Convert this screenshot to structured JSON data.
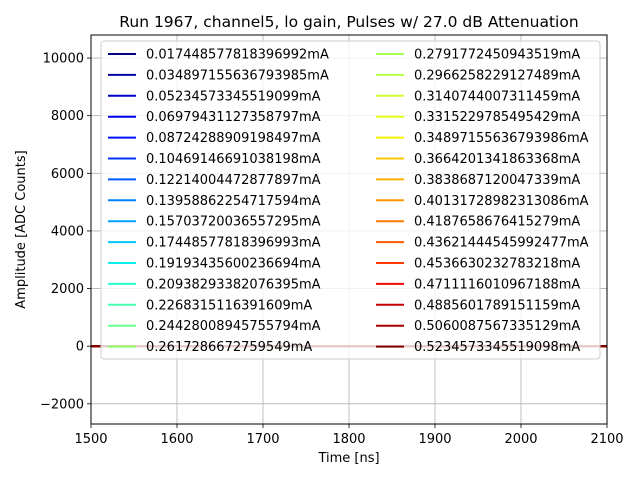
{
  "chart_data": {
    "type": "line",
    "title": "Run 1967, channel5, lo gain, Pulses w/ 27.0 dB Attenuation",
    "xlabel": "Time [ns]",
    "ylabel": "Amplitude [ADC Counts]",
    "xlim": [
      1500,
      2100
    ],
    "ylim": [
      -2700,
      10800
    ],
    "xticks": [
      1500,
      1600,
      1700,
      1800,
      1900,
      2000,
      2100
    ],
    "yticks": [
      -2000,
      0,
      2000,
      4000,
      6000,
      8000,
      10000
    ],
    "xtick_labels": [
      "1500",
      "1600",
      "1700",
      "1800",
      "1900",
      "2000",
      "2100"
    ],
    "ytick_labels": [
      "−2000",
      "0",
      "2000",
      "4000",
      "6000",
      "8000",
      "10000"
    ],
    "grid": true,
    "legend_position": "top",
    "legend_columns": 2,
    "series": [
      {
        "name": "0.017448577818396992mA",
        "color": "#00007f",
        "x": [
          1500,
          2100
        ],
        "y": [
          0,
          0
        ]
      },
      {
        "name": "0.034897155636793985mA",
        "color": "#00009f",
        "x": [
          1500,
          2100
        ],
        "y": [
          0,
          0
        ]
      },
      {
        "name": "0.05234573345519099mA",
        "color": "#0000c8",
        "x": [
          1500,
          2100
        ],
        "y": [
          0,
          0
        ]
      },
      {
        "name": "0.06979431127358797mA",
        "color": "#0000ed",
        "x": [
          1500,
          2100
        ],
        "y": [
          0,
          0
        ]
      },
      {
        "name": "0.08724288909198497mA",
        "color": "#0010ff",
        "x": [
          1500,
          2100
        ],
        "y": [
          0,
          0
        ]
      },
      {
        "name": "0.10469146691038198mA",
        "color": "#0034ff",
        "x": [
          1500,
          2100
        ],
        "y": [
          0,
          0
        ]
      },
      {
        "name": "0.12214004472877897mA",
        "color": "#0058ff",
        "x": [
          1500,
          2100
        ],
        "y": [
          0,
          0
        ]
      },
      {
        "name": "0.13958862254717594mA",
        "color": "#0080ff",
        "x": [
          1500,
          2100
        ],
        "y": [
          0,
          0
        ]
      },
      {
        "name": "0.15703720036557295mA",
        "color": "#00a4ff",
        "x": [
          1500,
          2100
        ],
        "y": [
          0,
          0
        ]
      },
      {
        "name": "0.17448577818396993mA",
        "color": "#00c8ff",
        "x": [
          1500,
          2100
        ],
        "y": [
          0,
          0
        ]
      },
      {
        "name": "0.19193435600236694mA",
        "color": "#0ceff2",
        "x": [
          1500,
          2100
        ],
        "y": [
          0,
          0
        ]
      },
      {
        "name": "0.20938293382076395mA",
        "color": "#29ffce",
        "x": [
          1500,
          2100
        ],
        "y": [
          0,
          0
        ]
      },
      {
        "name": "0.2268315116391609mA",
        "color": "#45ffb1",
        "x": [
          1500,
          2100
        ],
        "y": [
          0,
          0
        ]
      },
      {
        "name": "0.24428008945755794mA",
        "color": "#69ff8d",
        "x": [
          1500,
          2100
        ],
        "y": [
          0,
          0
        ]
      },
      {
        "name": "0.2617286672759549mA",
        "color": "#8dff69",
        "x": [
          1500,
          2100
        ],
        "y": [
          0,
          0
        ]
      },
      {
        "name": "0.2791772450943519mA",
        "color": "#a4ff53",
        "x": [
          1500,
          2100
        ],
        "y": [
          0,
          0
        ]
      },
      {
        "name": "0.2966258229127489mA",
        "color": "#b7ff40",
        "x": [
          1500,
          2100
        ],
        "y": [
          0,
          0
        ]
      },
      {
        "name": "0.3140744007311459mA",
        "color": "#ceff29",
        "x": [
          1500,
          2100
        ],
        "y": [
          0,
          0
        ]
      },
      {
        "name": "0.3315229785495429mA",
        "color": "#e4ff13",
        "x": [
          1500,
          2100
        ],
        "y": [
          0,
          0
        ]
      },
      {
        "name": "0.34897155636793986mA",
        "color": "#fbf100",
        "x": [
          1500,
          2100
        ],
        "y": [
          0,
          0
        ]
      },
      {
        "name": "0.3664201341863368mA",
        "color": "#ffc400",
        "x": [
          1500,
          2100
        ],
        "y": [
          0,
          0
        ]
      },
      {
        "name": "0.3838687120047339mA",
        "color": "#ffae00",
        "x": [
          1500,
          2100
        ],
        "y": [
          0,
          0
        ]
      },
      {
        "name": "0.40131728982313086mA",
        "color": "#ff9400",
        "x": [
          1500,
          2100
        ],
        "y": [
          0,
          0
        ]
      },
      {
        "name": "0.4187658676415279mA",
        "color": "#ff7a00",
        "x": [
          1500,
          2100
        ],
        "y": [
          0,
          0
        ]
      },
      {
        "name": "0.43621444545992477mA",
        "color": "#ff5900",
        "x": [
          1500,
          2100
        ],
        "y": [
          0,
          0
        ]
      },
      {
        "name": "0.4536630232783218mA",
        "color": "#ff3b00",
        "x": [
          1500,
          2100
        ],
        "y": [
          0,
          0
        ]
      },
      {
        "name": "0.4711116010967188mA",
        "color": "#f10800",
        "x": [
          1500,
          2100
        ],
        "y": [
          0,
          0
        ]
      },
      {
        "name": "0.4885601789151159mA",
        "color": "#c80000",
        "x": [
          1500,
          2100
        ],
        "y": [
          0,
          0
        ]
      },
      {
        "name": "0.5060087567335129mA",
        "color": "#a40000",
        "x": [
          1500,
          2100
        ],
        "y": [
          0,
          0
        ]
      },
      {
        "name": "0.5234573345519098mA",
        "color": "#7f0000",
        "x": [
          1500,
          2100
        ],
        "y": [
          0,
          0
        ]
      }
    ]
  }
}
